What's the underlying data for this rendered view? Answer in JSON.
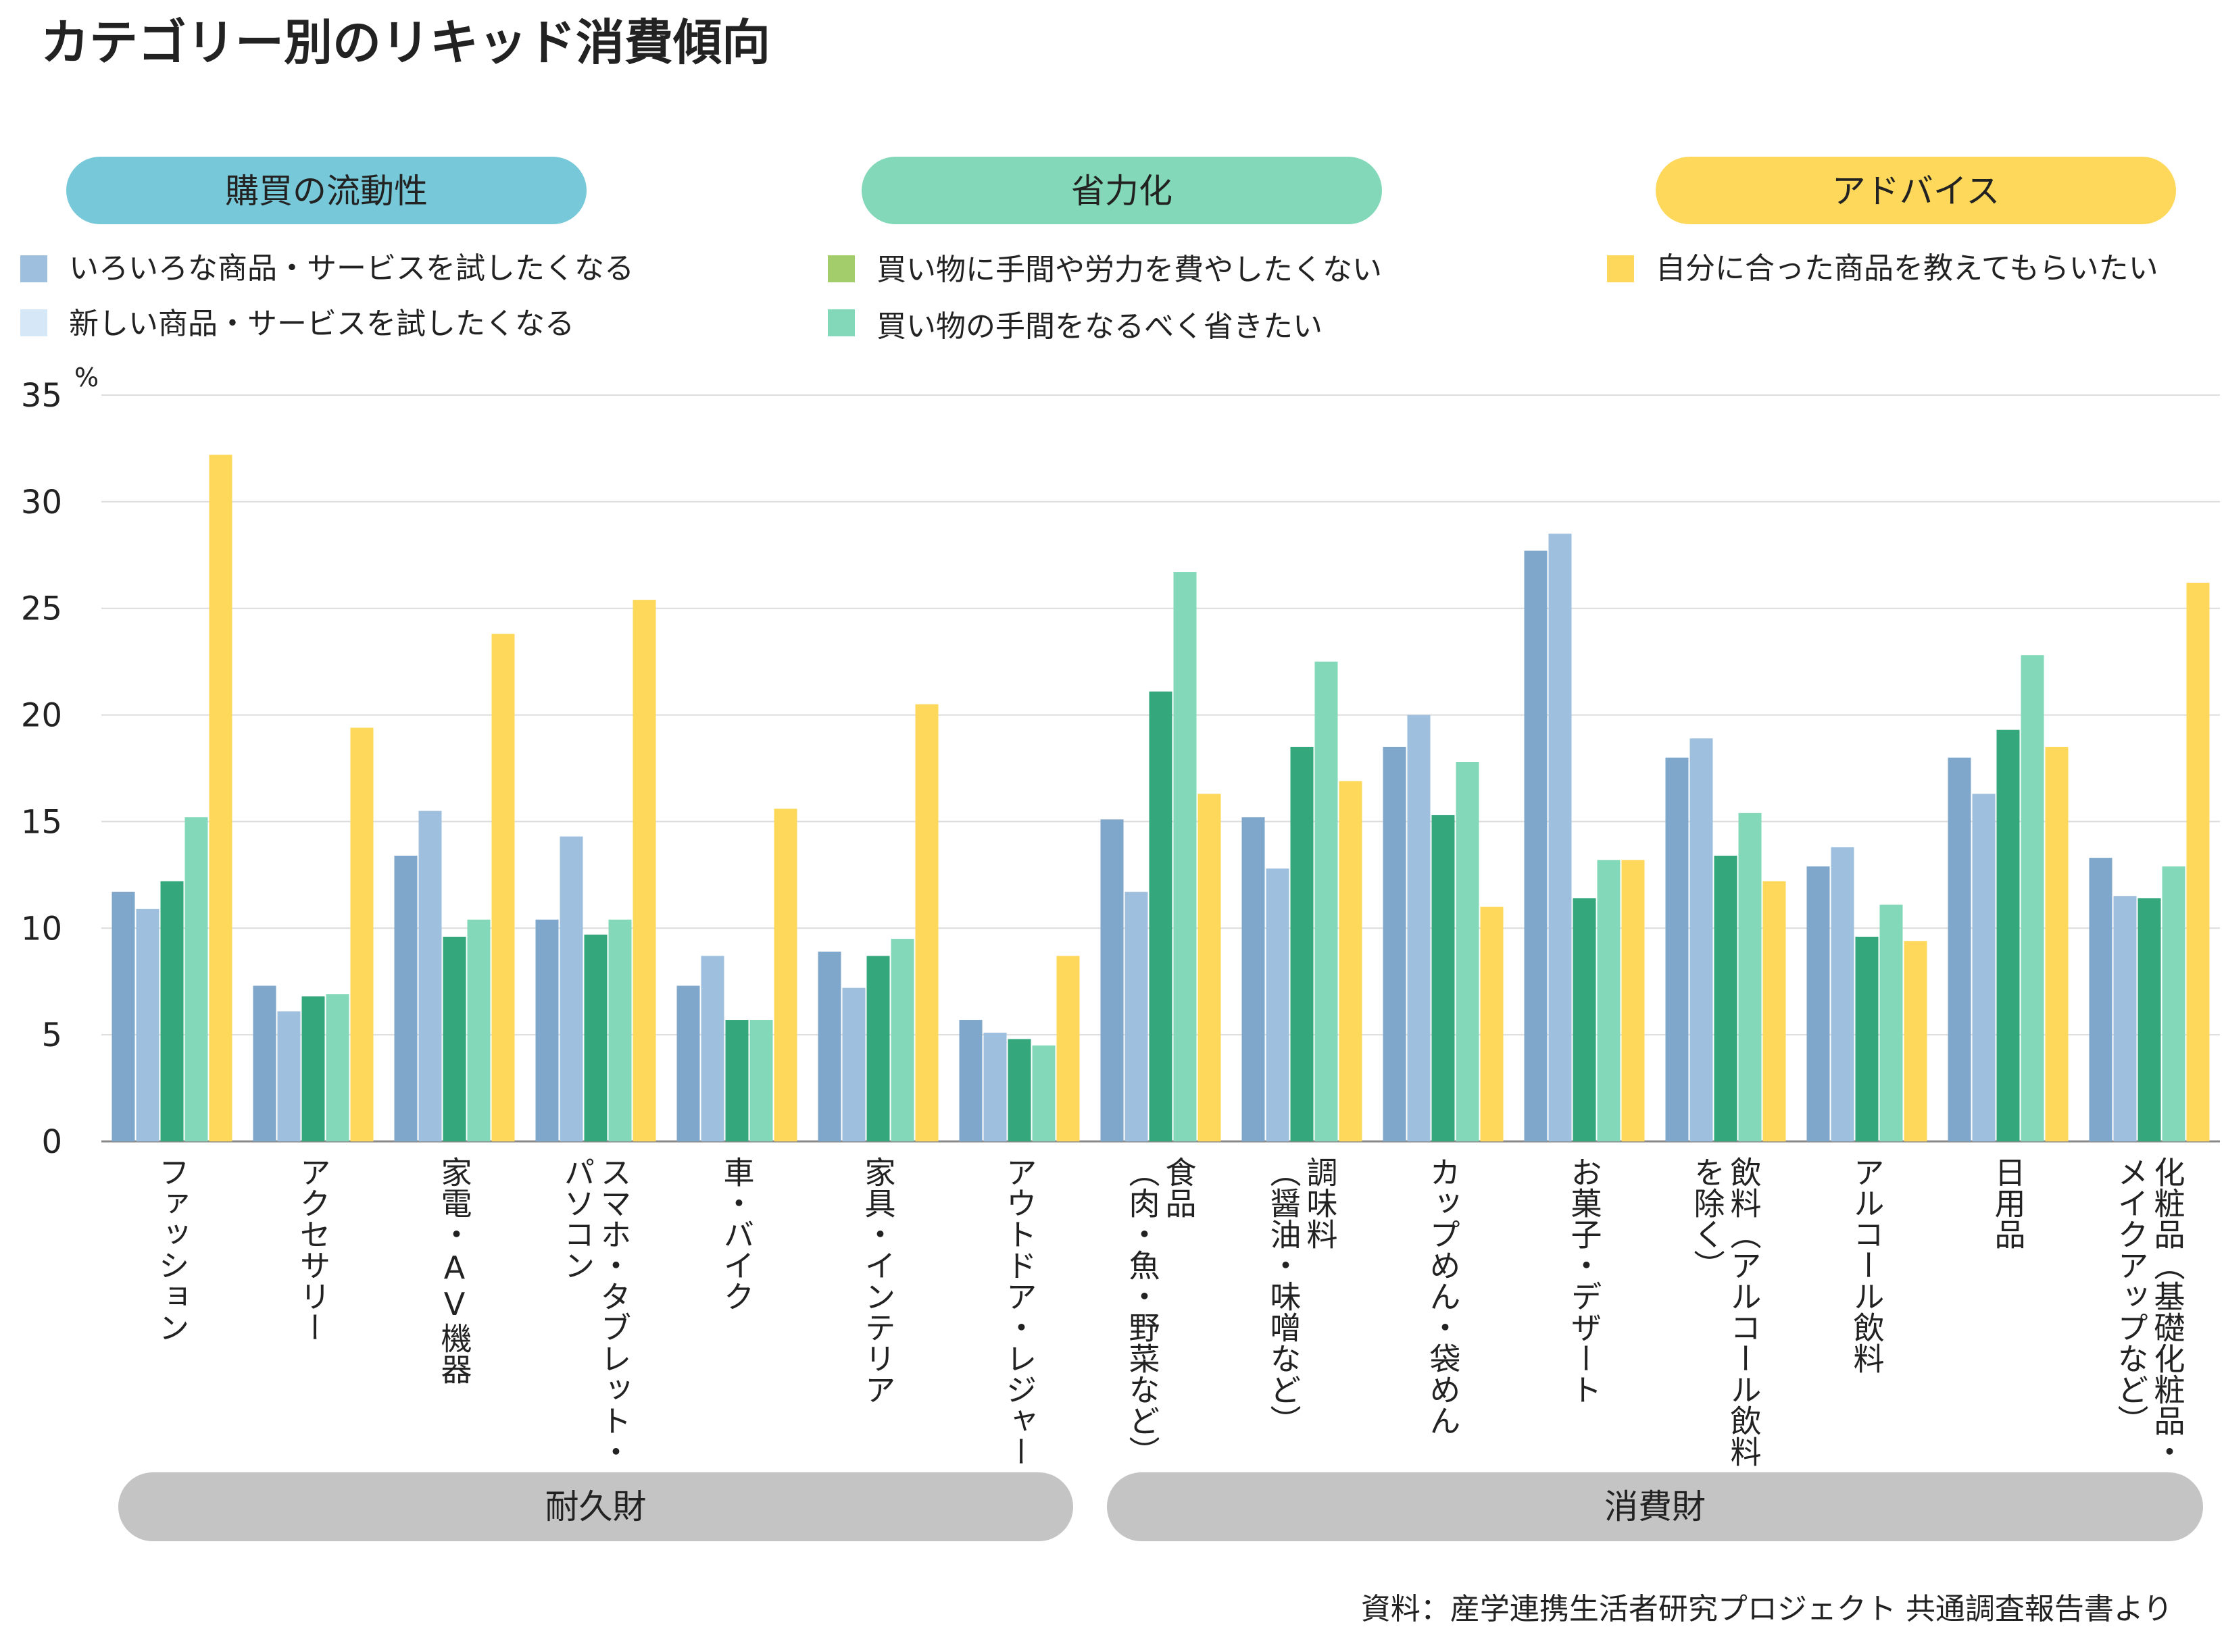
{
  "title": "カテゴリー別のリキッド消費傾向",
  "source": "資料：産学連携生活者研究プロジェクト 共通調査報告書より",
  "groups": [
    {
      "label": "購買の流動性",
      "color": "#77c8d8",
      "items": [
        {
          "label": "いろいろな商品・サービスを試したくなる",
          "color": "#9ec0de"
        },
        {
          "label": "新しい商品・サービスを試したくなる",
          "color": "#d6e8f8"
        }
      ]
    },
    {
      "label": "省力化",
      "color": "#82d8b8",
      "items": [
        {
          "label": "買い物に手間や労力を費やしたくない",
          "color": "#a3cc6a"
        },
        {
          "label": "買い物の手間をなるべく省きたい",
          "color": "#82d8b8"
        }
      ]
    },
    {
      "label": "アドバイス",
      "color": "#fdd85b",
      "items": [
        {
          "label": "自分に合った商品を教えてもらいたい",
          "color": "#fdd85b"
        }
      ]
    }
  ],
  "bottom_groups": [
    {
      "label": "耐久財",
      "span": [
        0,
        6
      ]
    },
    {
      "label": "消費財",
      "span": [
        7,
        14
      ]
    }
  ],
  "chart_data": {
    "type": "bar",
    "ylabel": "%",
    "ylim": [
      0,
      35
    ],
    "yticks": [
      0,
      5,
      10,
      15,
      20,
      25,
      30,
      35
    ],
    "grid": true,
    "categories": [
      [
        "ファッション"
      ],
      [
        "アクセサリー"
      ],
      [
        "家電・AV機器"
      ],
      [
        "スマホ・タブレット・",
        "パソコン"
      ],
      [
        "車・バイク"
      ],
      [
        "家具・インテリア"
      ],
      [
        "アウトドア・レジャー"
      ],
      [
        "食品",
        "（肉・魚・野菜など）"
      ],
      [
        "調味料",
        "（醤油・味噌など）"
      ],
      [
        "カップめん・袋めん"
      ],
      [
        "お菓子・デザート"
      ],
      [
        "飲料（アルコール飲料",
        "を除く）"
      ],
      [
        "アルコール飲料"
      ],
      [
        "日用品"
      ],
      [
        "化粧品（基礎化粧品・",
        "メイクアップなど）"
      ]
    ],
    "series": [
      {
        "name": "いろいろな商品・サービスを試したくなる",
        "color": "#7fa7cb",
        "values": [
          11.7,
          7.3,
          13.4,
          10.4,
          7.3,
          8.9,
          5.7,
          15.1,
          15.2,
          18.5,
          27.7,
          18.0,
          12.9,
          18.0,
          13.3
        ]
      },
      {
        "name": "新しい商品・サービスを試したくなる",
        "color": "#9ec0de",
        "values": [
          10.9,
          6.1,
          15.5,
          14.3,
          8.7,
          7.2,
          5.1,
          11.7,
          12.8,
          20.0,
          28.5,
          18.9,
          13.8,
          16.3,
          11.5
        ]
      },
      {
        "name": "買い物に手間や労力を費やしたくない",
        "color": "#35a77c",
        "values": [
          12.2,
          6.8,
          9.6,
          9.7,
          5.7,
          8.7,
          4.8,
          21.1,
          18.5,
          15.3,
          11.4,
          13.4,
          9.6,
          19.3,
          11.4
        ]
      },
      {
        "name": "買い物の手間をなるべく省きたい",
        "color": "#82d8b8",
        "values": [
          15.2,
          6.9,
          10.4,
          10.4,
          5.7,
          9.5,
          4.5,
          26.7,
          22.5,
          17.8,
          13.2,
          15.4,
          11.1,
          22.8,
          12.9
        ]
      },
      {
        "name": "自分に合った商品を教えてもらいたい",
        "color": "#fdd85b",
        "values": [
          32.2,
          19.4,
          23.8,
          25.4,
          15.6,
          20.5,
          8.7,
          16.3,
          16.9,
          11.0,
          13.2,
          12.2,
          9.4,
          18.5,
          26.2
        ]
      }
    ]
  }
}
